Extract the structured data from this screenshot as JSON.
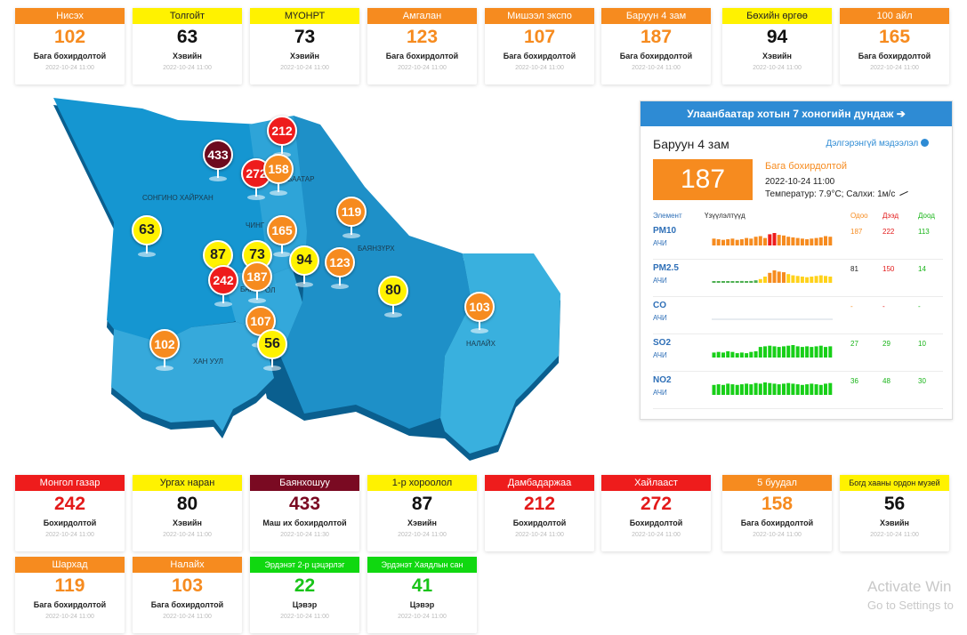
{
  "timestamp_default": "2022-10-24 11:00",
  "top_cards": [
    {
      "name": "Нисэх",
      "value": "102",
      "level": "Бага бохирдолтой",
      "time": "2022-10-24 11:00",
      "color": "orange"
    },
    {
      "name": "Толгойт",
      "value": "63",
      "level": "Хэвийн",
      "time": "2022-10-24 11:00",
      "color": "yellow"
    },
    {
      "name": "МҮОНРТ",
      "value": "73",
      "level": "Хэвийн",
      "time": "2022-10-24 11:00",
      "color": "yellow"
    },
    {
      "name": "Амгалан",
      "value": "123",
      "level": "Бага бохирдолтой",
      "time": "2022-10-24 11:00",
      "color": "orange"
    },
    {
      "name": "Мишээл экспо",
      "value": "107",
      "level": "Бага бохирдолтой",
      "time": "2022-10-24 11:00",
      "color": "orange"
    },
    {
      "name": "Баруун 4 зам",
      "value": "187",
      "level": "Бага бохирдолтой",
      "time": "2022-10-24 11:00",
      "color": "orange"
    },
    {
      "name": "Бөхийн өргөө",
      "value": "94",
      "level": "Хэвийн",
      "time": "2022-10-24 11:00",
      "color": "yellow"
    },
    {
      "name": "100 айл",
      "value": "165",
      "level": "Бага бохирдолтой",
      "time": "2022-10-24 11:00",
      "color": "orange"
    }
  ],
  "mid_cards": [
    {
      "name": "Монгол газар",
      "value": "242",
      "level": "Бохирдолтой",
      "time": "2022-10-24 11:00",
      "color": "red"
    },
    {
      "name": "Ургах наран",
      "value": "80",
      "level": "Хэвийн",
      "time": "2022-10-24 11:00",
      "color": "yellow"
    },
    {
      "name": "Баянхошуу",
      "value": "433",
      "level": "Маш их бохирдолтой",
      "time": "2022-10-24 11:30",
      "color": "maroon"
    },
    {
      "name": "1-р хороолол",
      "value": "87",
      "level": "Хэвийн",
      "time": "2022-10-24 11:00",
      "color": "yellow"
    },
    {
      "name": "Дамбадаржаа",
      "value": "212",
      "level": "Бохирдолтой",
      "time": "2022-10-24 11:00",
      "color": "red"
    },
    {
      "name": "Хайлааст",
      "value": "272",
      "level": "Бохирдолтой",
      "time": "2022-10-24 11:00",
      "color": "red"
    },
    {
      "name": "5 буудал",
      "value": "158",
      "level": "Бага бохирдолтой",
      "time": "2022-10-24 11:00",
      "color": "orange"
    },
    {
      "name": "Богд хааны ордон музей",
      "value": "56",
      "level": "Хэвийн",
      "time": "2022-10-24 11:00",
      "color": "yellow"
    }
  ],
  "bottom_cards": [
    {
      "name": "Шархад",
      "value": "119",
      "level": "Бага бохирдолтой",
      "time": "2022-10-24 11:00",
      "color": "orange"
    },
    {
      "name": "Налайх",
      "value": "103",
      "level": "Бага бохирдолтой",
      "time": "2022-10-24 11:00",
      "color": "orange"
    },
    {
      "name": "Эрдэнэт 2-р цэцэрлэг",
      "value": "22",
      "level": "Цэвэр",
      "time": "2022-10-24 11:00",
      "color": "green"
    },
    {
      "name": "Эрдэнэт Хаядлын сан",
      "value": "41",
      "level": "Цэвэр",
      "time": "2022-10-24 11:00",
      "color": "green"
    }
  ],
  "map": {
    "district_labels": [
      "СОНГИНО ХАЙРХАН",
      "БААТАР",
      "ЧИНГ",
      "БАЯНЗҮРХ",
      "БАР",
      "ОЛ",
      "ХАН УУЛ",
      "НАЛАЙХ"
    ],
    "markers": [
      {
        "value": "433",
        "color": "maroon"
      },
      {
        "value": "212",
        "color": "red"
      },
      {
        "value": "272",
        "color": "red"
      },
      {
        "value": "158",
        "color": "orange"
      },
      {
        "value": "63",
        "color": "yellow"
      },
      {
        "value": "165",
        "color": "orange"
      },
      {
        "value": "119",
        "color": "orange"
      },
      {
        "value": "87",
        "color": "yellow"
      },
      {
        "value": "73",
        "color": "yellow"
      },
      {
        "value": "94",
        "color": "yellow"
      },
      {
        "value": "123",
        "color": "orange"
      },
      {
        "value": "242",
        "color": "red"
      },
      {
        "value": "187",
        "color": "orange"
      },
      {
        "value": "80",
        "color": "yellow"
      },
      {
        "value": "103",
        "color": "orange"
      },
      {
        "value": "107",
        "color": "orange"
      },
      {
        "value": "56",
        "color": "yellow"
      },
      {
        "value": "102",
        "color": "orange"
      }
    ]
  },
  "panel": {
    "title": "Улаанбаатар хотын 7 хоногийн дундаж",
    "station": "Баруун 4 зам",
    "detail_link": "Дэлгэрэнгүй мэдээлэл",
    "value": "187",
    "level": "Бага бохирдолтой",
    "datetime": "2022-10-24 11:00",
    "weather": "Температур: 7.9°C; Салхи: 1м/с",
    "col_element": "Элемент",
    "col_index": "Үзүүлэлтүүд",
    "col_now": "Одоо",
    "col_max": "Дээд",
    "col_min": "Доод",
    "rows": [
      {
        "element": "PM10",
        "sub": "АЧИ",
        "now": "187",
        "max": "222",
        "min": "113",
        "bars": [
          0.55,
          0.5,
          0.45,
          0.5,
          0.55,
          0.45,
          0.5,
          0.6,
          0.55,
          0.7,
          0.75,
          0.6,
          0.9,
          1.0,
          0.85,
          0.8,
          0.7,
          0.65,
          0.6,
          0.55,
          0.5,
          0.55,
          0.6,
          0.65,
          0.75,
          0.7
        ],
        "bar_colors": "pm10"
      },
      {
        "element": "PM2.5",
        "sub": "АЧИ",
        "now": "81",
        "max": "150",
        "min": "14",
        "bars": [
          0.1,
          0.1,
          0.12,
          0.1,
          0.1,
          0.1,
          0.15,
          0.12,
          0.15,
          0.2,
          0.3,
          0.5,
          0.8,
          1.0,
          0.9,
          0.85,
          0.7,
          0.6,
          0.55,
          0.5,
          0.45,
          0.5,
          0.55,
          0.6,
          0.55,
          0.5
        ],
        "bar_colors": "pm25"
      },
      {
        "element": "CO",
        "sub": "АЧИ",
        "now": "-",
        "max": "-",
        "min": "-",
        "bars": [],
        "bar_colors": "none"
      },
      {
        "element": "SO2",
        "sub": "АЧИ",
        "now": "27",
        "max": "29",
        "min": "10",
        "bars": [
          0.4,
          0.45,
          0.4,
          0.5,
          0.45,
          0.35,
          0.4,
          0.35,
          0.45,
          0.5,
          0.85,
          0.9,
          0.95,
          0.9,
          0.85,
          0.9,
          0.95,
          1.0,
          0.9,
          0.85,
          0.9,
          0.85,
          0.9,
          0.95,
          0.85,
          0.9
        ],
        "bar_colors": "green"
      },
      {
        "element": "NO2",
        "sub": "АЧИ",
        "now": "36",
        "max": "48",
        "min": "30",
        "bars": [
          0.8,
          0.85,
          0.8,
          0.9,
          0.85,
          0.8,
          0.85,
          0.9,
          0.85,
          0.95,
          0.9,
          1.0,
          0.95,
          0.9,
          0.85,
          0.9,
          0.95,
          0.9,
          0.85,
          0.8,
          0.85,
          0.9,
          0.85,
          0.8,
          0.9,
          0.95
        ],
        "bar_colors": "green"
      }
    ]
  },
  "watermark": {
    "line1": "Activate Win",
    "line2": "Go to Settings to"
  },
  "colors": {
    "orange": "#f68b1f",
    "yellow": "#fff200",
    "red": "#ee1c1c",
    "maroon": "#7a0a22",
    "green": "#10d810",
    "blue": "#2e8bd4"
  }
}
